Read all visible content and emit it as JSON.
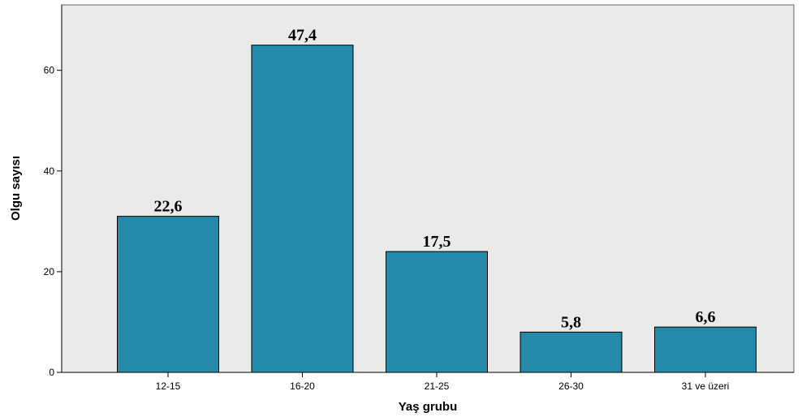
{
  "chart_data": {
    "type": "bar",
    "title": "",
    "xlabel": "Yaş grubu",
    "ylabel": "Olgu sayısı",
    "categories": [
      "12-15",
      "16-20",
      "21-25",
      "26-30",
      "31 ve üzeri"
    ],
    "values": [
      31,
      65,
      24,
      8,
      9
    ],
    "data_labels": [
      "22,6",
      "47,4",
      "17,5",
      "5,8",
      "6,6"
    ],
    "ylim": [
      0,
      73
    ],
    "yticks": [
      0,
      20,
      40,
      60
    ],
    "grid": false,
    "legend": "none",
    "colors": {
      "bar_fill": "#2589A9",
      "bar_stroke": "#000000",
      "plot_background": "#EAEAEA",
      "axis": "#000000"
    }
  }
}
